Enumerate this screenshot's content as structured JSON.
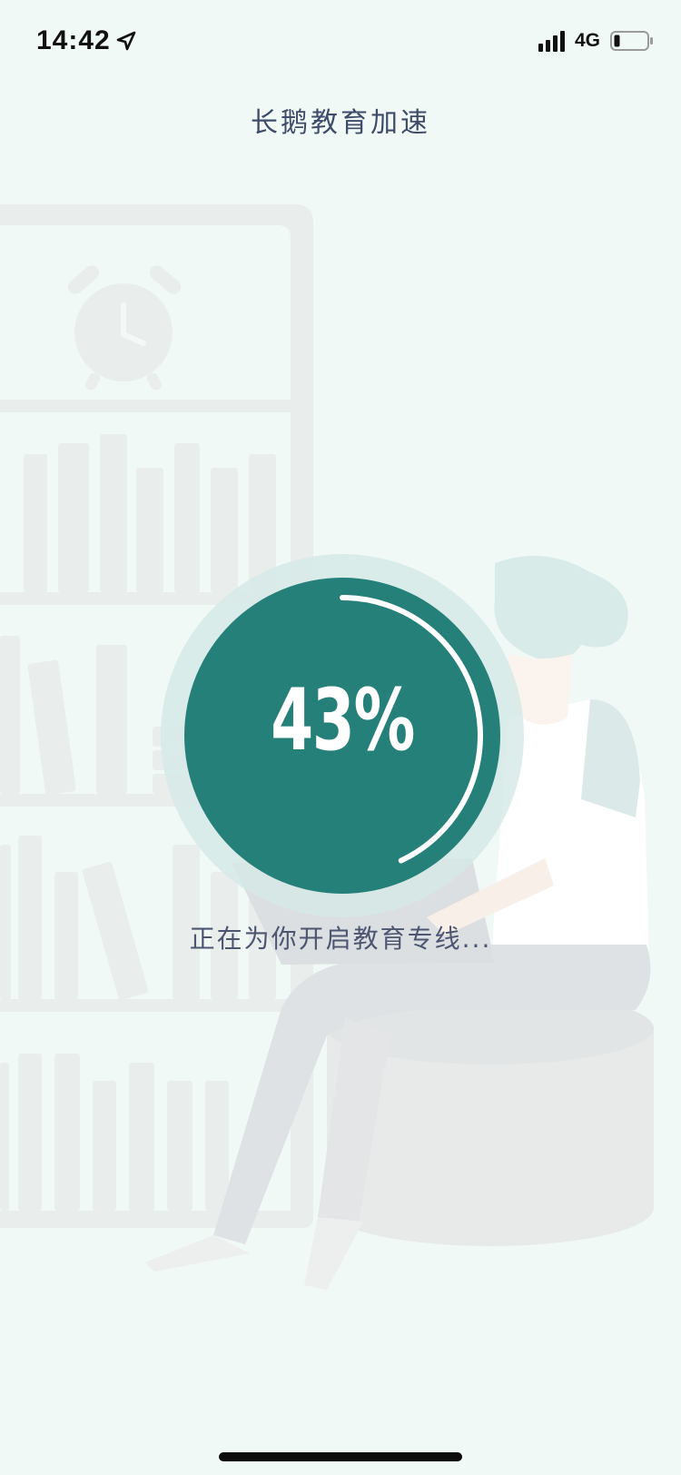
{
  "status_bar": {
    "time": "14:42",
    "network": "4G",
    "icons": [
      "location-arrow-icon",
      "signal-bars-icon",
      "battery-icon"
    ]
  },
  "header": {
    "title": "长鹅教育加速"
  },
  "progress": {
    "percent_label": "43%",
    "value": 0.43,
    "status_text": "正在为你开启教育专线..."
  },
  "colors": {
    "background": "#f1f9f7",
    "accent": "#26807a",
    "ring_halo": "#d4e8e6",
    "title_text": "#3e4c69",
    "status_text": "#4d5670"
  }
}
